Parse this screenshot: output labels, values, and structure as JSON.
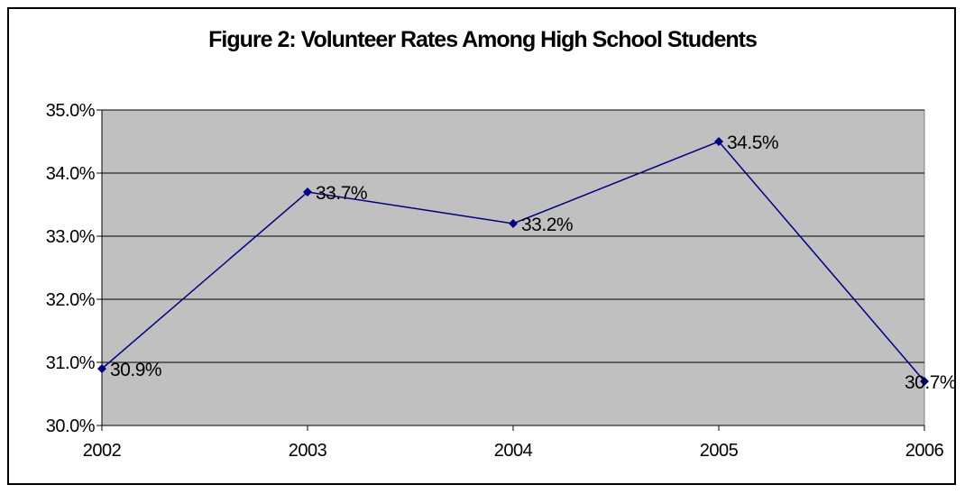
{
  "chart_data": {
    "type": "line",
    "title": "Figure 2: Volunteer Rates Among High School Students",
    "xlabel": "",
    "ylabel": "",
    "x": [
      "2002",
      "2003",
      "2004",
      "2005",
      "2006"
    ],
    "series": [
      {
        "values": [
          30.9,
          33.7,
          33.2,
          34.5,
          30.7
        ],
        "data_labels": [
          "30.9%",
          "33.7%",
          "33.2%",
          "34.5%",
          "30.7%"
        ],
        "color": "#000080",
        "marker": "diamond"
      }
    ],
    "ylim": [
      30.0,
      35.0
    ],
    "yticks": [
      "30.0%",
      "31.0%",
      "32.0%",
      "33.0%",
      "34.0%",
      "35.0%"
    ],
    "grid": true,
    "legend": "none",
    "plot_background": "#C0C0C0"
  }
}
